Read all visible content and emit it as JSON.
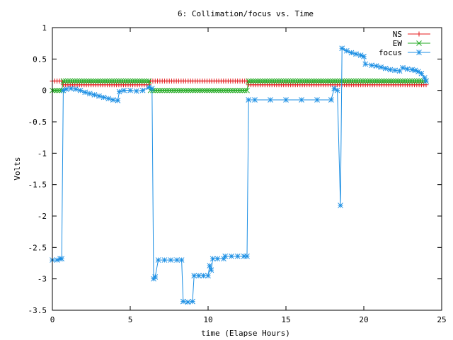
{
  "chart_data": {
    "type": "line",
    "title": "6: Collimation/focus vs. Time",
    "xlabel": "time (Elapse Hours)",
    "ylabel": "Volts",
    "xlim": [
      0,
      25
    ],
    "ylim": [
      -3.5,
      1
    ],
    "x_ticks": [
      "0",
      "5",
      "10",
      "15",
      "20",
      "25"
    ],
    "y_ticks": [
      "1",
      "0.5",
      "0",
      "-0.5",
      "-1",
      "-1.5",
      "-2",
      "-2.5",
      "-3",
      "-3.5"
    ],
    "x_tick_values": [
      0,
      5,
      10,
      15,
      20,
      25
    ],
    "y_tick_values": [
      1,
      0.5,
      0,
      -0.5,
      -1,
      -1.5,
      -2,
      -2.5,
      -3,
      -3.5
    ],
    "grid": false,
    "legend_position": "top-right",
    "series": [
      {
        "name": "NS",
        "color": "#e41a1c",
        "marker": "plus",
        "points": [
          [
            0,
            0.15
          ],
          [
            0.6,
            0.15
          ],
          [
            0.7,
            0.09
          ],
          [
            6.2,
            0.09
          ],
          [
            6.3,
            0.15
          ],
          [
            12.5,
            0.15
          ],
          [
            12.6,
            0.09
          ],
          [
            24,
            0.09
          ]
        ]
      },
      {
        "name": "EW",
        "color": "#22aa22",
        "marker": "x",
        "points": [
          [
            0,
            0.0
          ],
          [
            0.6,
            0.0
          ],
          [
            0.7,
            0.15
          ],
          [
            6.2,
            0.15
          ],
          [
            6.3,
            0.0
          ],
          [
            12.5,
            0.0
          ],
          [
            12.6,
            0.15
          ],
          [
            24,
            0.15
          ]
        ]
      },
      {
        "name": "focus",
        "color": "#1c8fe4",
        "marker": "star",
        "points": [
          [
            0,
            -2.7
          ],
          [
            0.3,
            -2.7
          ],
          [
            0.5,
            -2.68
          ],
          [
            0.6,
            -2.68
          ],
          [
            0.7,
            0.0
          ],
          [
            0.9,
            0.02
          ],
          [
            1.2,
            0.03
          ],
          [
            1.5,
            0.02
          ],
          [
            1.8,
            0.0
          ],
          [
            2.1,
            -0.03
          ],
          [
            2.4,
            -0.05
          ],
          [
            2.7,
            -0.07
          ],
          [
            3.0,
            -0.09
          ],
          [
            3.3,
            -0.11
          ],
          [
            3.6,
            -0.13
          ],
          [
            3.9,
            -0.15
          ],
          [
            4.2,
            -0.16
          ],
          [
            4.3,
            -0.02
          ],
          [
            4.6,
            0.0
          ],
          [
            5.0,
            0.0
          ],
          [
            5.4,
            -0.01
          ],
          [
            5.8,
            0.0
          ],
          [
            6.2,
            0.05
          ],
          [
            6.4,
            0.03
          ],
          [
            6.5,
            -3.0
          ],
          [
            6.6,
            -2.97
          ],
          [
            6.8,
            -2.7
          ],
          [
            7.2,
            -2.7
          ],
          [
            7.6,
            -2.7
          ],
          [
            8.0,
            -2.7
          ],
          [
            8.3,
            -2.7
          ],
          [
            8.4,
            -3.36
          ],
          [
            8.7,
            -3.37
          ],
          [
            9.0,
            -3.36
          ],
          [
            9.1,
            -2.95
          ],
          [
            9.4,
            -2.95
          ],
          [
            9.7,
            -2.95
          ],
          [
            10.0,
            -2.95
          ],
          [
            10.1,
            -2.79
          ],
          [
            10.2,
            -2.86
          ],
          [
            10.3,
            -2.68
          ],
          [
            10.6,
            -2.68
          ],
          [
            11.0,
            -2.68
          ],
          [
            11.1,
            -2.64
          ],
          [
            11.5,
            -2.64
          ],
          [
            11.9,
            -2.64
          ],
          [
            12.3,
            -2.64
          ],
          [
            12.5,
            -2.64
          ],
          [
            12.6,
            -0.15
          ],
          [
            13.0,
            -0.15
          ],
          [
            14.0,
            -0.15
          ],
          [
            15.0,
            -0.15
          ],
          [
            16.0,
            -0.15
          ],
          [
            17.0,
            -0.15
          ],
          [
            17.9,
            -0.15
          ],
          [
            18.1,
            0.03
          ],
          [
            18.3,
            0.0
          ],
          [
            18.5,
            -1.83
          ],
          [
            18.6,
            0.67
          ],
          [
            18.9,
            0.63
          ],
          [
            19.2,
            0.6
          ],
          [
            19.5,
            0.58
          ],
          [
            19.8,
            0.56
          ],
          [
            20.0,
            0.54
          ],
          [
            20.1,
            0.42
          ],
          [
            20.5,
            0.4
          ],
          [
            20.8,
            0.39
          ],
          [
            21.1,
            0.37
          ],
          [
            21.4,
            0.35
          ],
          [
            21.7,
            0.33
          ],
          [
            22.0,
            0.32
          ],
          [
            22.3,
            0.31
          ],
          [
            22.5,
            0.36
          ],
          [
            22.8,
            0.34
          ],
          [
            23.1,
            0.33
          ],
          [
            23.3,
            0.32
          ],
          [
            23.5,
            0.3
          ],
          [
            23.7,
            0.27
          ],
          [
            23.9,
            0.2
          ],
          [
            24.0,
            0.15
          ]
        ]
      }
    ]
  }
}
